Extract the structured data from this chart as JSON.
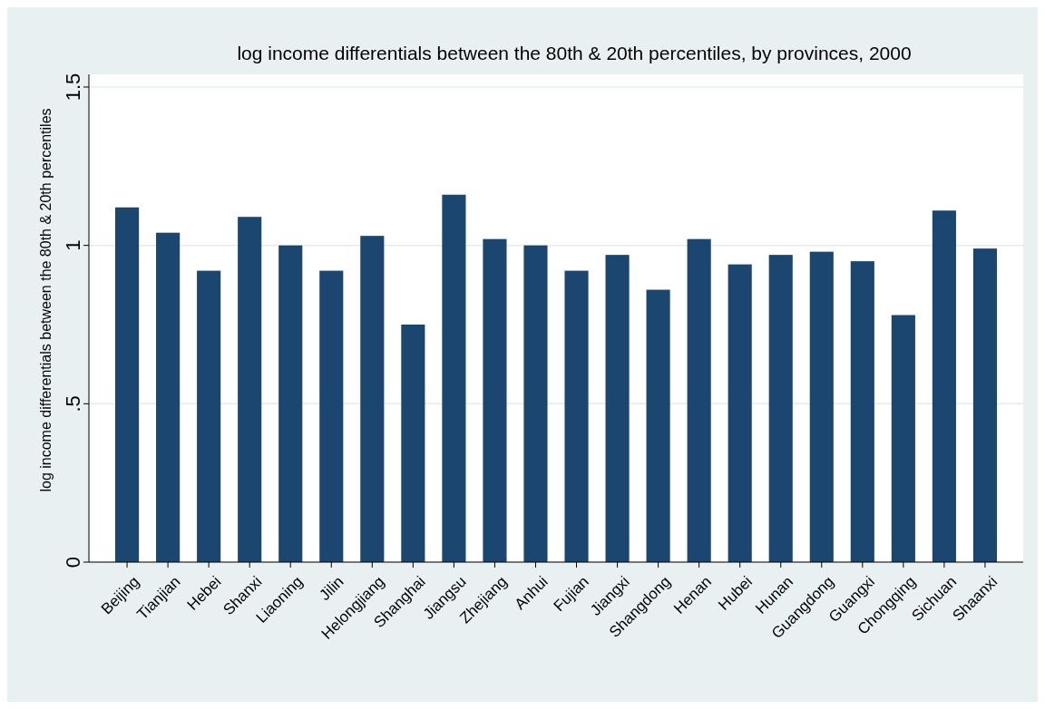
{
  "chart_data": {
    "type": "bar",
    "title": "log income differentials between the 80th & 20th percentiles, by provinces, 2000",
    "ylabel": "log income differentials between the 80th & 20th percentiles",
    "categories": [
      "Beijing",
      "Tianjian",
      "Hebei",
      "Shanxi",
      "Liaoning",
      "Jilin",
      "Helongjiang",
      "Shanghai",
      "Jiangsu",
      "Zhejiang",
      "Anhui",
      "Fujian",
      "Jiangxi",
      "Shangdong",
      "Henan",
      "Hubei",
      "Hunan",
      "Guangdong",
      "Guangxi",
      "Chongqing",
      "Sichuan",
      "Shaanxi"
    ],
    "values": [
      1.12,
      1.04,
      0.92,
      1.09,
      1.0,
      0.92,
      1.03,
      0.75,
      1.16,
      1.02,
      1.0,
      0.92,
      0.97,
      0.86,
      1.02,
      0.94,
      0.97,
      0.98,
      0.95,
      0.78,
      1.11,
      0.99
    ],
    "color": "#1a4670",
    "ylim": [
      0,
      1.54
    ],
    "yticks": [
      0,
      {
        "value": 0.5,
        "label": ".5"
      },
      1,
      1.5
    ],
    "grid": "y"
  }
}
